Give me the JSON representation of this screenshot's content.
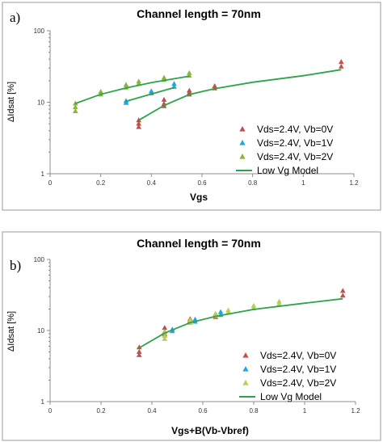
{
  "chart_data": [
    {
      "type": "scatter",
      "panel_label": "a)",
      "title": "Channel length = 70nm",
      "xlabel": "Vgs",
      "ylabel": "ΔIdsat [%]",
      "xlim": [
        0,
        1.2
      ],
      "ylim": [
        1,
        100
      ],
      "y_scale": "log",
      "x_ticks": [
        "0",
        "0.2",
        "0.4",
        "0.6",
        "0.8",
        "1",
        "1.2"
      ],
      "y_ticks": [
        "1",
        "10",
        "100"
      ],
      "legend_position": "bottom-right",
      "series": [
        {
          "name": "Vds=2.4V, Vb=0V",
          "marker": "triangle",
          "color": "#c0504d",
          "x": [
            0.35,
            0.35,
            0.35,
            0.45,
            0.45,
            0.45,
            0.55,
            0.55,
            0.55,
            0.65,
            0.65,
            1.15,
            1.15
          ],
          "y": [
            4.5,
            5.0,
            5.6,
            8.8,
            9.5,
            10.8,
            12.8,
            13.5,
            14.5,
            15.6,
            16.8,
            31.5,
            36.5
          ]
        },
        {
          "name": "Vds=2.4V, Vb=1V",
          "marker": "triangle",
          "color": "#1ea6e6",
          "x": [
            0.3,
            0.3,
            0.4,
            0.4,
            0.49,
            0.49
          ],
          "y": [
            9.8,
            10.4,
            13.3,
            14.2,
            16.4,
            18.0
          ]
        },
        {
          "name": "Vds=2.4V, Vb=2V",
          "marker": "triangle",
          "color": "#8cb43c",
          "x": [
            0.1,
            0.1,
            0.1,
            0.2,
            0.2,
            0.3,
            0.3,
            0.35,
            0.35,
            0.45,
            0.45,
            0.55,
            0.55
          ],
          "y": [
            7.5,
            8.5,
            9.6,
            12.8,
            14.0,
            16.0,
            17.5,
            18.0,
            19.5,
            20.5,
            22.0,
            23.5,
            25.5
          ]
        },
        {
          "name": "Low Vg Model",
          "marker": "line",
          "color": "#2da34a",
          "segments": [
            {
              "x": [
                0.1,
                0.2,
                0.3,
                0.4,
                0.55
              ],
              "y": [
                9.6,
                12.9,
                15.8,
                18.8,
                23.2
              ]
            },
            {
              "x": [
                0.3,
                0.4,
                0.49
              ],
              "y": [
                10.3,
                13.0,
                16.0
              ]
            },
            {
              "x": [
                0.35,
                0.45,
                0.55,
                0.65,
                0.8,
                1.0,
                1.15
              ],
              "y": [
                5.6,
                9.0,
                12.8,
                15.5,
                19.0,
                23.5,
                28.5
              ]
            }
          ]
        }
      ]
    },
    {
      "type": "scatter",
      "panel_label": "b)",
      "title": "Channel length = 70nm",
      "xlabel": "Vgs+B(Vb-Vbref)",
      "ylabel": "ΔIdsat [%]",
      "xlim": [
        0,
        1.2
      ],
      "ylim": [
        1,
        100
      ],
      "y_scale": "log",
      "x_ticks": [
        "0",
        "0.2",
        "0.4",
        "0.6",
        "0.8",
        "1",
        "1.2"
      ],
      "y_ticks": [
        "1",
        "10",
        "100"
      ],
      "legend_position": "bottom-right",
      "series": [
        {
          "name": "Vds=2.4V, Vb=0V",
          "marker": "triangle",
          "color": "#c0504d",
          "x": [
            0.35,
            0.35,
            0.35,
            0.45,
            0.45,
            0.45,
            0.55,
            0.55,
            0.55,
            0.65,
            0.65,
            1.15,
            1.15
          ],
          "y": [
            4.5,
            5.0,
            5.8,
            8.8,
            9.6,
            10.9,
            12.8,
            13.6,
            14.5,
            15.5,
            16.6,
            31.0,
            36.0
          ]
        },
        {
          "name": "Vds=2.4V, Vb=1V",
          "marker": "triangle",
          "color": "#1ea6e6",
          "x": [
            0.48,
            0.48,
            0.57,
            0.57,
            0.67,
            0.67
          ],
          "y": [
            9.8,
            10.3,
            13.3,
            14.3,
            16.5,
            18.2
          ]
        },
        {
          "name": "Vds=2.4V, Vb=2V",
          "marker": "triangle",
          "color": "#b8cf4c",
          "x": [
            0.45,
            0.45,
            0.45,
            0.55,
            0.55,
            0.65,
            0.65,
            0.7,
            0.7,
            0.8,
            0.8,
            0.9,
            0.9
          ],
          "y": [
            7.6,
            8.4,
            9.5,
            12.8,
            14.0,
            16.0,
            17.3,
            17.8,
            19.2,
            20.5,
            22.2,
            23.5,
            25.5
          ]
        },
        {
          "name": "Low Vg Model",
          "marker": "line",
          "color": "#2da34a",
          "segments": [
            {
              "x": [
                0.35,
                0.45,
                0.55,
                0.65,
                0.8,
                1.0,
                1.15
              ],
              "y": [
                5.7,
                9.2,
                12.9,
                15.8,
                19.8,
                24.2,
                28.0
              ]
            }
          ]
        }
      ]
    }
  ]
}
